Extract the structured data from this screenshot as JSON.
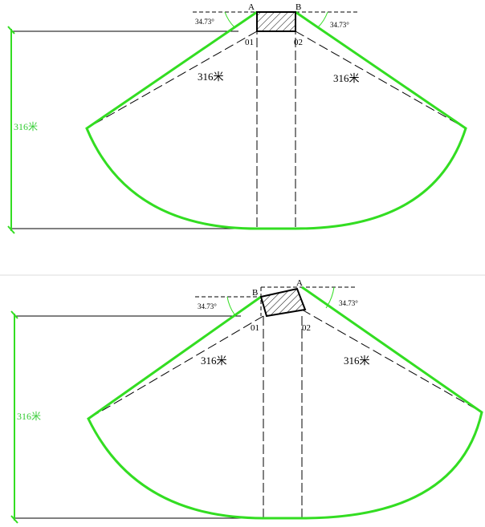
{
  "colors": {
    "outline": "#33dd22",
    "line": "#000000",
    "panel_divider": "#dddddd"
  },
  "panel_top": {
    "point_a": "A",
    "point_b": "B",
    "center_1": "01",
    "center_2": "02",
    "angle_left": "34.73°",
    "angle_right": "34.73°",
    "radius_left": "316米",
    "radius_right": "316米",
    "height_label": "316米"
  },
  "panel_bottom": {
    "point_a": "A",
    "point_b": "B",
    "center_1": "01",
    "center_2": "02",
    "angle_left": "34.73°",
    "angle_right": "34.73°",
    "radius_left": "316米",
    "radius_right": "316米",
    "height_label": "316米"
  }
}
